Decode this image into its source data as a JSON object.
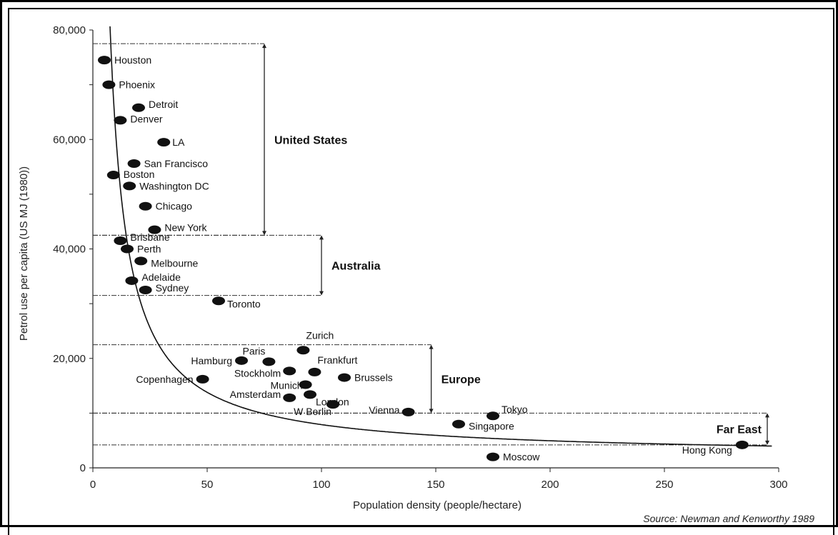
{
  "chart_data": {
    "type": "scatter",
    "title": "",
    "xlabel": "Population density (people/hectare)",
    "ylabel": "Petrol use per capita (US MJ (1980))",
    "xlim": [
      0,
      300
    ],
    "ylim": [
      0,
      80000
    ],
    "x_ticks": [
      0,
      50,
      100,
      150,
      200,
      250,
      300
    ],
    "x_tick_labels": [
      "0",
      "50",
      "100",
      "150",
      "200",
      "250",
      "300"
    ],
    "y_ticks": [
      0,
      20000,
      40000,
      60000,
      80000
    ],
    "y_tick_labels": [
      "0",
      "20,000",
      "40,000",
      "60,000",
      "80,000"
    ],
    "grid": false,
    "source": "Source: Newman and Kenworthy 1989",
    "points": [
      {
        "label": "Houston",
        "x": 5,
        "y": 74500
      },
      {
        "label": "Phoenix",
        "x": 7,
        "y": 70000
      },
      {
        "label": "Detroit",
        "x": 20,
        "y": 65800
      },
      {
        "label": "Denver",
        "x": 12,
        "y": 63500
      },
      {
        "label": "LA",
        "x": 31,
        "y": 59500
      },
      {
        "label": "San Francisco",
        "x": 18,
        "y": 55600
      },
      {
        "label": "Boston",
        "x": 9,
        "y": 53500
      },
      {
        "label": "Washington DC",
        "x": 16,
        "y": 51500
      },
      {
        "label": "Chicago",
        "x": 23,
        "y": 47800
      },
      {
        "label": "New York",
        "x": 27,
        "y": 43500
      },
      {
        "label": "Brisbane",
        "x": 12,
        "y": 41500
      },
      {
        "label": "Perth",
        "x": 15,
        "y": 40000
      },
      {
        "label": "Melbourne",
        "x": 21,
        "y": 37800
      },
      {
        "label": "Adelaide",
        "x": 17,
        "y": 34200
      },
      {
        "label": "Sydney",
        "x": 23,
        "y": 32500
      },
      {
        "label": "Toronto",
        "x": 55,
        "y": 30500
      },
      {
        "label": "Zurich",
        "x": 92,
        "y": 21500
      },
      {
        "label": "Hamburg",
        "x": 65,
        "y": 19600
      },
      {
        "label": "Paris",
        "x": 77,
        "y": 19400
      },
      {
        "label": "Frankfurt",
        "x": 97,
        "y": 17500
      },
      {
        "label": "Stockholm",
        "x": 86,
        "y": 17700
      },
      {
        "label": "Brussels",
        "x": 110,
        "y": 16500
      },
      {
        "label": "Copenhagen",
        "x": 48,
        "y": 16200
      },
      {
        "label": "Munich",
        "x": 93,
        "y": 15200
      },
      {
        "label": "London",
        "x": 95,
        "y": 13400
      },
      {
        "label": "Amsterdam",
        "x": 86,
        "y": 12800
      },
      {
        "label": "W Berlin",
        "x": 105,
        "y": 11600
      },
      {
        "label": "Vienna",
        "x": 138,
        "y": 10200
      },
      {
        "label": "Tokyo",
        "x": 175,
        "y": 9500
      },
      {
        "label": "Singapore",
        "x": 160,
        "y": 8000
      },
      {
        "label": "Hong Kong",
        "x": 284,
        "y": 4200
      },
      {
        "label": "Moscow",
        "x": 175,
        "y": 2000
      }
    ],
    "regions": [
      {
        "label": "United States",
        "y_top": 77500,
        "y_bottom": 42500,
        "x_right": 75
      },
      {
        "label": "Australia",
        "y_top": 42500,
        "y_bottom": 31500,
        "x_right": 100
      },
      {
        "label": "Europe",
        "y_top": 22500,
        "y_bottom": 10000,
        "x_right": 148
      },
      {
        "label": "Far East",
        "y_top": 10000,
        "y_bottom": 4200,
        "x_right": 295
      }
    ],
    "curve": {
      "type": "hyperbola",
      "k": 590000,
      "offset": 2000
    }
  }
}
